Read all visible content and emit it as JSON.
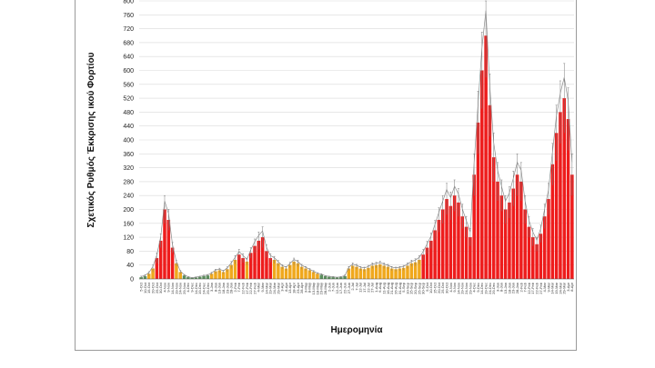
{
  "chart_data": {
    "type": "bar",
    "title": "",
    "xlabel": "Ημερομηνία",
    "ylabel": "Σχετικός Ρυθμός Έκκρισης ικού Φορτίου",
    "ylim": [
      0,
      800
    ],
    "yticks": [
      0,
      40,
      80,
      120,
      160,
      200,
      240,
      280,
      320,
      360,
      400,
      440,
      480,
      520,
      560,
      600,
      640,
      680,
      720,
      760,
      800
    ],
    "grid": true,
    "legend": "none",
    "colors": {
      "low": "#5a8f5a",
      "medium": "#f0a81c",
      "high": "#ee1c1c",
      "error": "#7a7a7a",
      "trend": "#8a8a8a"
    },
    "categories": [
      "5-Oct",
      "10-Oct",
      "15-Oct",
      "20-Oct",
      "25-Oct",
      "30-Oct",
      "4-Nov",
      "9-Nov",
      "14-Nov",
      "19-Nov",
      "24-Nov",
      "29-Nov",
      "4-Dec",
      "9-Dec",
      "14-Dec",
      "19-Dec",
      "24-Dec",
      "29-Dec",
      "3-Jan",
      "8-Jan",
      "13-Jan",
      "18-Jan",
      "23-Jan",
      "28-Jan",
      "2-Feb",
      "7-Feb",
      "12-Feb",
      "17-Feb",
      "22-Feb",
      "27-Feb",
      "4-Mar",
      "9-Mar",
      "14-Mar",
      "19-Mar",
      "24-Mar",
      "29-Mar",
      "3-Apr",
      "8-Apr",
      "13-Apr",
      "18-Apr",
      "23-Apr",
      "28-Apr",
      "3-May",
      "8-May",
      "13-May",
      "18-May",
      "23-May",
      "28-May",
      "2-Jun",
      "7-Jun",
      "12-Jun",
      "17-Jun",
      "22-Jun",
      "27-Jun",
      "2-Jul",
      "7-Jul",
      "12-Jul",
      "17-Jul",
      "22-Jul",
      "27-Jul",
      "1-Aug",
      "6-Aug",
      "11-Aug",
      "16-Aug",
      "21-Aug",
      "26-Aug",
      "31-Aug",
      "5-Sep",
      "10-Sep",
      "15-Sep",
      "20-Sep",
      "25-Sep",
      "30-Sep",
      "5-Oct",
      "10-Oct",
      "15-Oct",
      "20-Oct",
      "25-Oct",
      "30-Oct",
      "4-Nov",
      "9-Nov",
      "14-Nov",
      "19-Nov",
      "24-Nov",
      "29-Nov",
      "4-Dec",
      "9-Dec",
      "14-Dec",
      "19-Dec",
      "24-Dec",
      "29-Dec",
      "3-Jan",
      "8-Jan",
      "13-Jan",
      "18-Jan",
      "23-Jan",
      "28-Jan",
      "2-Feb",
      "7-Feb",
      "12-Feb",
      "17-Feb",
      "22-Feb",
      "27-Feb",
      "4-Mar",
      "9-Mar",
      "14-Mar",
      "19-Mar",
      "24-Mar",
      "29-Mar",
      "3-Apr",
      "8-Apr"
    ],
    "values": [
      5,
      8,
      15,
      30,
      60,
      110,
      200,
      170,
      90,
      45,
      20,
      10,
      5,
      3,
      4,
      6,
      8,
      10,
      15,
      22,
      25,
      20,
      28,
      40,
      55,
      70,
      60,
      50,
      75,
      95,
      110,
      120,
      80,
      60,
      55,
      45,
      35,
      30,
      40,
      50,
      45,
      35,
      30,
      25,
      20,
      15,
      12,
      8,
      6,
      5,
      4,
      5,
      8,
      30,
      38,
      35,
      30,
      28,
      32,
      38,
      40,
      42,
      38,
      35,
      30,
      28,
      30,
      32,
      38,
      45,
      48,
      55,
      70,
      90,
      110,
      140,
      170,
      200,
      230,
      210,
      240,
      220,
      180,
      150,
      120,
      300,
      450,
      600,
      700,
      500,
      350,
      280,
      240,
      200,
      220,
      260,
      300,
      280,
      200,
      150,
      120,
      100,
      130,
      180,
      230,
      330,
      420,
      480,
      520,
      460,
      300
    ],
    "errors": [
      3,
      4,
      6,
      10,
      15,
      20,
      40,
      30,
      15,
      8,
      5,
      3,
      2,
      1,
      2,
      2,
      3,
      3,
      4,
      6,
      6,
      5,
      7,
      10,
      12,
      15,
      13,
      10,
      15,
      20,
      25,
      30,
      18,
      12,
      10,
      8,
      6,
      6,
      8,
      10,
      9,
      7,
      6,
      5,
      4,
      3,
      3,
      2,
      2,
      2,
      1,
      2,
      3,
      6,
      8,
      7,
      6,
      6,
      7,
      8,
      8,
      9,
      8,
      7,
      6,
      6,
      6,
      7,
      8,
      9,
      10,
      12,
      15,
      18,
      22,
      28,
      35,
      40,
      45,
      40,
      45,
      40,
      35,
      30,
      25,
      60,
      90,
      110,
      120,
      90,
      70,
      55,
      45,
      40,
      45,
      50,
      60,
      55,
      40,
      30,
      25,
      20,
      25,
      35,
      45,
      60,
      80,
      90,
      100,
      90,
      60
    ]
  }
}
